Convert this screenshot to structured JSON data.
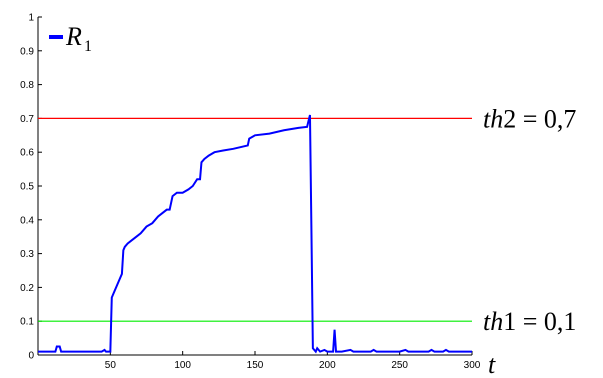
{
  "chart_data": {
    "type": "line",
    "xlim": [
      0,
      300
    ],
    "ylim": [
      0,
      1
    ],
    "x_ticks": [
      50,
      100,
      150,
      200,
      250,
      300
    ],
    "y_ticks": [
      0,
      0.1,
      0.2,
      0.3,
      0.4,
      0.5,
      0.6,
      0.7,
      0.8,
      0.9,
      1
    ],
    "y_tick_labels": [
      "0",
      "0.1",
      "0.2",
      "0.3",
      "0.4",
      "0.5",
      "0.6",
      "0.7",
      "0.8",
      "0.9",
      "1"
    ],
    "x_tick_labels": [
      "50",
      "100",
      "150",
      "200",
      "250",
      "300"
    ],
    "xlabel": "t",
    "grid": false,
    "legend": {
      "placement": "top-left",
      "symbol": "R",
      "subscript": "1"
    },
    "series": [
      {
        "name": "R1",
        "color": "#0000ff",
        "points": [
          [
            0,
            0.01
          ],
          [
            12,
            0.01
          ],
          [
            13,
            0.025
          ],
          [
            15,
            0.025
          ],
          [
            16,
            0.01
          ],
          [
            30,
            0.01
          ],
          [
            44,
            0.01
          ],
          [
            46,
            0.015
          ],
          [
            47,
            0.01
          ],
          [
            50,
            0.01
          ],
          [
            51,
            0.17
          ],
          [
            52,
            0.18
          ],
          [
            53,
            0.19
          ],
          [
            54,
            0.2
          ],
          [
            56,
            0.22
          ],
          [
            58,
            0.24
          ],
          [
            59,
            0.31
          ],
          [
            60,
            0.32
          ],
          [
            62,
            0.33
          ],
          [
            65,
            0.34
          ],
          [
            68,
            0.35
          ],
          [
            71,
            0.36
          ],
          [
            75,
            0.38
          ],
          [
            79,
            0.39
          ],
          [
            83,
            0.41
          ],
          [
            86,
            0.42
          ],
          [
            89,
            0.43
          ],
          [
            91,
            0.43
          ],
          [
            93,
            0.47
          ],
          [
            96,
            0.48
          ],
          [
            100,
            0.48
          ],
          [
            104,
            0.49
          ],
          [
            107,
            0.5
          ],
          [
            110,
            0.52
          ],
          [
            112,
            0.52
          ],
          [
            113,
            0.57
          ],
          [
            115,
            0.58
          ],
          [
            118,
            0.59
          ],
          [
            122,
            0.6
          ],
          [
            128,
            0.605
          ],
          [
            135,
            0.61
          ],
          [
            145,
            0.62
          ],
          [
            146,
            0.64
          ],
          [
            150,
            0.65
          ],
          [
            160,
            0.655
          ],
          [
            170,
            0.665
          ],
          [
            180,
            0.672
          ],
          [
            186,
            0.675
          ],
          [
            188,
            0.71
          ],
          [
            189,
            0.37
          ],
          [
            190,
            0.02
          ],
          [
            192,
            0.01
          ],
          [
            193,
            0.02
          ],
          [
            195,
            0.01
          ],
          [
            198,
            0.015
          ],
          [
            200,
            0.01
          ],
          [
            204,
            0.01
          ],
          [
            205,
            0.075
          ],
          [
            206,
            0.01
          ],
          [
            210,
            0.01
          ],
          [
            216,
            0.015
          ],
          [
            218,
            0.01
          ],
          [
            230,
            0.01
          ],
          [
            232,
            0.015
          ],
          [
            234,
            0.01
          ],
          [
            250,
            0.01
          ],
          [
            254,
            0.015
          ],
          [
            256,
            0.01
          ],
          [
            270,
            0.01
          ],
          [
            272,
            0.015
          ],
          [
            274,
            0.01
          ],
          [
            280,
            0.01
          ],
          [
            282,
            0.015
          ],
          [
            284,
            0.01
          ],
          [
            300,
            0.01
          ]
        ]
      }
    ],
    "thresholds": [
      {
        "name": "th2",
        "value": 0.7,
        "color": "#ff0000",
        "label_name": "th",
        "label_index": "2",
        "label_eq": " = ",
        "label_value": "0,7"
      },
      {
        "name": "th1",
        "value": 0.1,
        "color": "#00ee00",
        "label_name": "th",
        "label_index": "1",
        "label_eq": " = ",
        "label_value": "0,1"
      }
    ]
  }
}
